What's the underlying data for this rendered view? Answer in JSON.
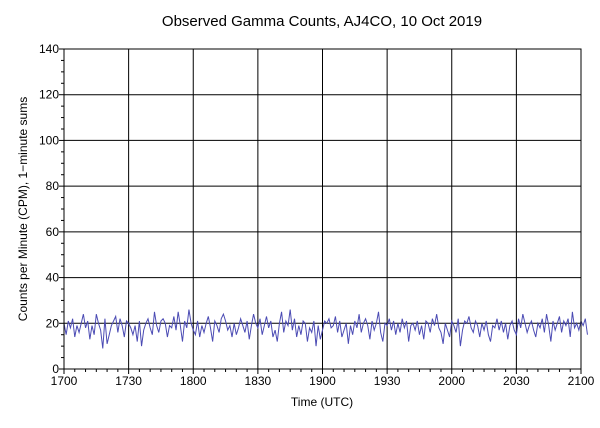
{
  "chart_data": {
    "type": "line",
    "title": "Observed Gamma Counts, AJ4CO, 10 Oct 2019",
    "xlabel": "Time (UTC)",
    "ylabel": "Counts per Minute (CPM), 1−minute sums",
    "x_tick_labels": [
      "1700",
      "1730",
      "1800",
      "1830",
      "1900",
      "1930",
      "2000",
      "2030",
      "2100"
    ],
    "y_tick_labels": [
      "0",
      "20",
      "40",
      "60",
      "80",
      "100",
      "120",
      "140"
    ],
    "xlim_minutes": [
      0,
      240
    ],
    "ylim": [
      0,
      140
    ],
    "grid": true,
    "line_color": "#4b4bb4",
    "series": [
      {
        "x_start": "1700",
        "x_step_minutes": 1,
        "values": [
          20,
          15,
          21,
          18,
          22,
          14,
          19,
          16,
          20,
          24,
          18,
          21,
          13,
          19,
          15,
          24,
          20,
          17,
          9,
          22,
          11,
          15,
          19,
          21,
          23,
          16,
          22,
          19,
          14,
          21,
          20,
          18,
          15,
          19,
          12,
          21,
          10,
          17,
          20,
          22,
          18,
          15,
          25,
          19,
          16,
          21,
          22,
          20,
          14,
          19,
          18,
          23,
          17,
          25,
          19,
          12,
          21,
          18,
          26,
          20,
          17,
          15,
          21,
          14,
          19,
          16,
          20,
          23,
          18,
          12,
          21,
          19,
          16,
          22,
          24,
          21,
          17,
          19,
          14,
          20,
          15,
          18,
          22,
          19,
          16,
          21,
          13,
          19,
          24,
          20,
          18,
          22,
          15,
          19,
          23,
          18,
          21,
          14,
          17,
          12,
          20,
          25,
          16,
          21,
          19,
          26,
          17,
          22,
          14,
          19,
          15,
          21,
          20,
          12,
          18,
          16,
          21,
          10,
          19,
          13,
          17,
          21,
          20,
          22,
          18,
          19,
          23,
          16,
          21,
          14,
          17,
          20,
          11,
          19,
          15,
          21,
          18,
          24,
          16,
          20,
          22,
          19,
          13,
          21,
          17,
          20,
          25,
          16,
          12,
          20,
          19,
          22,
          17,
          21,
          15,
          20,
          16,
          22,
          18,
          21,
          12,
          19,
          20,
          17,
          21,
          15,
          19,
          13,
          21,
          20,
          16,
          22,
          19,
          24,
          18,
          16,
          11,
          20,
          17,
          14,
          21,
          19,
          16,
          22,
          10,
          17,
          21,
          20,
          23,
          18,
          16,
          21,
          19,
          14,
          20,
          17,
          21,
          15,
          12,
          19,
          18,
          22,
          17,
          21,
          16,
          20,
          13,
          19,
          21,
          17,
          15,
          22,
          18,
          24,
          20,
          16,
          19,
          21,
          17,
          14,
          20,
          18,
          22,
          16,
          24,
          19,
          12,
          21,
          17,
          20,
          23,
          16,
          21,
          19,
          22,
          14,
          25,
          18,
          20,
          17,
          21,
          19,
          22,
          15
        ]
      }
    ]
  }
}
